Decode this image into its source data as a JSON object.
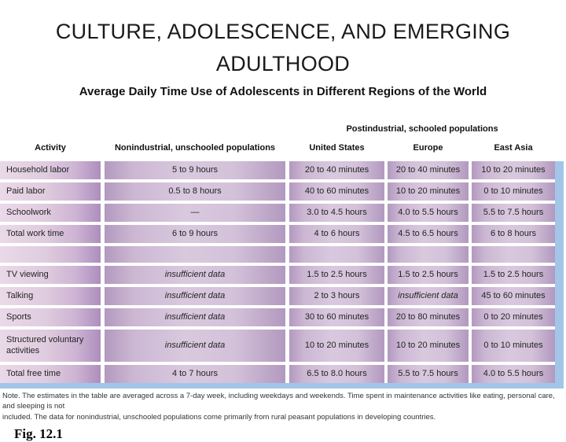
{
  "slide": {
    "title_line1": "CULTURE, ADOLESCENCE, AND EMERGING",
    "title_line2": "ADULTHOOD",
    "subtitle": "Average Daily Time Use of Adolescents in Different Regions of the World",
    "figure_label": "Fig. 12.1"
  },
  "table": {
    "group_header": "Postindustrial, schooled populations",
    "columns": [
      "Activity",
      "Nonindustrial, unschooled populations",
      "United States",
      "Europe",
      "East Asia"
    ],
    "rows": [
      {
        "cells": [
          "Household labor",
          "5 to 9 hours",
          "20 to 40 minutes",
          "20 to 40 minutes",
          "10 to 20 minutes"
        ]
      },
      {
        "cells": [
          "Paid labor",
          "0.5 to 8 hours",
          "40 to 60 minutes",
          "10 to 20 minutes",
          "0 to 10 minutes"
        ]
      },
      {
        "cells": [
          "Schoolwork",
          "—",
          "3.0 to 4.5 hours",
          "4.0 to 5.5 hours",
          "5.5 to 7.5 hours"
        ]
      },
      {
        "cells": [
          "Total work time",
          "6 to 9 hours",
          "4 to 6 hours",
          "4.5 to 6.5 hours",
          "6 to 8 hours"
        ]
      },
      {
        "cells": [
          "TV viewing",
          "insufficient data",
          "1.5 to 2.5 hours",
          "1.5 to 2.5 hours",
          "1.5 to 2.5 hours"
        ]
      },
      {
        "cells": [
          "Talking",
          "insufficient data",
          "2 to 3 hours",
          "insufficient data",
          "45 to 60 minutes"
        ]
      },
      {
        "cells": [
          "Sports",
          "insufficient data",
          "30 to 60 minutes",
          "20 to 80 minutes",
          "0 to 20 minutes"
        ]
      },
      {
        "cells": [
          "Structured voluntary activities",
          "insufficient data",
          "10 to 20 minutes",
          "10 to 20 minutes",
          "0 to 10 minutes"
        ]
      },
      {
        "cells": [
          "Total free time",
          "4 to 7 hours",
          "6.5 to 8.0 hours",
          "5.5 to 7.5 hours",
          "4.0 to 5.5 hours"
        ]
      }
    ],
    "note_line1": "Note. The estimates in the table are averaged across a 7-day week, including weekdays and weekends. Time spent in maintenance activities like eating, personal care, and sleeping is not",
    "note_line2": "included. The data for nonindustrial, unschooled populations come primarily from rural peasant populations in developing countries.",
    "colors": {
      "cell_light": "#d9c9de",
      "cell_dark": "#ad8ebc",
      "shadow_blue": "#a3c6e8"
    }
  }
}
